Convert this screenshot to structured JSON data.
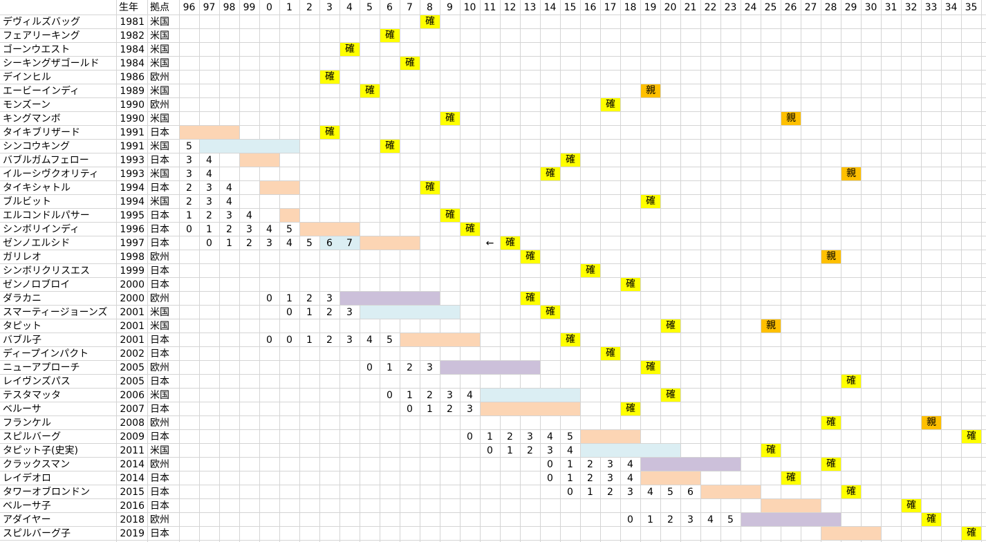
{
  "header": {
    "name_col": "",
    "year_col": "生年",
    "base_col": "拠点",
    "years": [
      "96",
      "97",
      "98",
      "99",
      "0",
      "1",
      "2",
      "3",
      "4",
      "5",
      "6",
      "7",
      "8",
      "9",
      "10",
      "11",
      "12",
      "13",
      "14",
      "15",
      "16",
      "17",
      "18",
      "19",
      "20",
      "21",
      "22",
      "23",
      "24",
      "25",
      "26",
      "27",
      "28",
      "29",
      "30",
      "31",
      "32",
      "33",
      "34",
      "35"
    ]
  },
  "colors": {
    "japan": "#fcd5b4",
    "usa": "#dbeef3",
    "europe": "#ccc0da",
    "kaku": "#ffff00",
    "oya": "#ffc000"
  },
  "rows": [
    {
      "name": "デヴィルズバッグ",
      "year": "1981",
      "base": "米国",
      "bar": null,
      "nums": [],
      "marks": [
        {
          "c": 12,
          "t": "確",
          "k": "kaku"
        }
      ]
    },
    {
      "name": "フェアリーキング",
      "year": "1982",
      "base": "米国",
      "bar": null,
      "nums": [],
      "marks": [
        {
          "c": 10,
          "t": "確",
          "k": "kaku"
        }
      ]
    },
    {
      "name": "ゴーンウエスト",
      "year": "1984",
      "base": "米国",
      "bar": null,
      "nums": [],
      "marks": [
        {
          "c": 8,
          "t": "確",
          "k": "kaku"
        }
      ]
    },
    {
      "name": "シーキングザゴールド",
      "year": "1984",
      "base": "米国",
      "bar": null,
      "nums": [],
      "marks": [
        {
          "c": 11,
          "t": "確",
          "k": "kaku"
        }
      ]
    },
    {
      "name": "デインヒル",
      "year": "1986",
      "base": "欧州",
      "bar": null,
      "nums": [],
      "marks": [
        {
          "c": 7,
          "t": "確",
          "k": "kaku"
        }
      ]
    },
    {
      "name": "エービーインディ",
      "year": "1989",
      "base": "米国",
      "bar": null,
      "nums": [],
      "marks": [
        {
          "c": 9,
          "t": "確",
          "k": "kaku"
        },
        {
          "c": 23,
          "t": "親",
          "k": "oya"
        }
      ]
    },
    {
      "name": "モンズーン",
      "year": "1990",
      "base": "欧州",
      "bar": null,
      "nums": [],
      "marks": [
        {
          "c": 21,
          "t": "確",
          "k": "kaku"
        }
      ]
    },
    {
      "name": "キングマンボ",
      "year": "1990",
      "base": "米国",
      "bar": null,
      "nums": [],
      "marks": [
        {
          "c": 13,
          "t": "確",
          "k": "kaku"
        },
        {
          "c": 30,
          "t": "親",
          "k": "oya"
        }
      ]
    },
    {
      "name": "タイキブリザード",
      "year": "1991",
      "base": "日本",
      "bar": {
        "s": 0,
        "e": 2,
        "k": "japan"
      },
      "nums": [],
      "marks": [
        {
          "c": 7,
          "t": "確",
          "k": "kaku"
        }
      ]
    },
    {
      "name": "シンコウキング",
      "year": "1991",
      "base": "米国",
      "bar": {
        "s": 1,
        "e": 5,
        "k": "usa"
      },
      "nums": [
        {
          "c": 0,
          "t": "5"
        }
      ],
      "marks": [
        {
          "c": 10,
          "t": "確",
          "k": "kaku"
        }
      ]
    },
    {
      "name": "バブルガムフェロー",
      "year": "1993",
      "base": "日本",
      "bar": {
        "s": 3,
        "e": 4,
        "k": "japan"
      },
      "nums": [
        {
          "c": 0,
          "t": "3"
        },
        {
          "c": 1,
          "t": "4"
        }
      ],
      "marks": [
        {
          "c": 19,
          "t": "確",
          "k": "kaku"
        }
      ]
    },
    {
      "name": "イルーシヴクオリティ",
      "year": "1993",
      "base": "米国",
      "bar": null,
      "nums": [
        {
          "c": 0,
          "t": "3"
        },
        {
          "c": 1,
          "t": "4"
        }
      ],
      "marks": [
        {
          "c": 18,
          "t": "確",
          "k": "kaku"
        },
        {
          "c": 33,
          "t": "親",
          "k": "oya"
        }
      ]
    },
    {
      "name": "タイキシャトル",
      "year": "1994",
      "base": "日本",
      "bar": {
        "s": 4,
        "e": 5,
        "k": "japan"
      },
      "nums": [
        {
          "c": 0,
          "t": "2"
        },
        {
          "c": 1,
          "t": "3"
        },
        {
          "c": 2,
          "t": "4"
        }
      ],
      "marks": [
        {
          "c": 12,
          "t": "確",
          "k": "kaku"
        }
      ]
    },
    {
      "name": "ブルビット",
      "year": "1994",
      "base": "米国",
      "bar": null,
      "nums": [
        {
          "c": 0,
          "t": "2"
        },
        {
          "c": 1,
          "t": "3"
        },
        {
          "c": 2,
          "t": "4"
        }
      ],
      "marks": [
        {
          "c": 23,
          "t": "確",
          "k": "kaku"
        }
      ]
    },
    {
      "name": "エルコンドルパサー",
      "year": "1995",
      "base": "日本",
      "bar": {
        "s": 5,
        "e": 5,
        "k": "japan"
      },
      "nums": [
        {
          "c": 0,
          "t": "1"
        },
        {
          "c": 1,
          "t": "2"
        },
        {
          "c": 2,
          "t": "3"
        },
        {
          "c": 3,
          "t": "4"
        }
      ],
      "marks": [
        {
          "c": 13,
          "t": "確",
          "k": "kaku"
        }
      ]
    },
    {
      "name": "シンボリインディ",
      "year": "1996",
      "base": "日本",
      "bar": {
        "s": 6,
        "e": 8,
        "k": "japan"
      },
      "nums": [
        {
          "c": 0,
          "t": "0"
        },
        {
          "c": 1,
          "t": "1"
        },
        {
          "c": 2,
          "t": "2"
        },
        {
          "c": 3,
          "t": "3"
        },
        {
          "c": 4,
          "t": "4"
        },
        {
          "c": 5,
          "t": "5"
        }
      ],
      "marks": [
        {
          "c": 14,
          "t": "確",
          "k": "kaku"
        }
      ]
    },
    {
      "name": "ゼンノエルシド",
      "year": "1997",
      "base": "日本",
      "bar": {
        "s": 9,
        "e": 11,
        "k": "japan"
      },
      "bar2": {
        "s": 7,
        "e": 8,
        "k": "usa"
      },
      "nums": [
        {
          "c": 1,
          "t": "0"
        },
        {
          "c": 2,
          "t": "1"
        },
        {
          "c": 3,
          "t": "2"
        },
        {
          "c": 4,
          "t": "3"
        },
        {
          "c": 5,
          "t": "4"
        },
        {
          "c": 6,
          "t": "5"
        },
        {
          "c": 7,
          "t": "6"
        },
        {
          "c": 8,
          "t": "7"
        },
        {
          "c": 15,
          "t": "←"
        }
      ],
      "marks": [
        {
          "c": 16,
          "t": "確",
          "k": "kaku"
        }
      ]
    },
    {
      "name": "ガリレオ",
      "year": "1998",
      "base": "欧州",
      "bar": null,
      "nums": [],
      "marks": [
        {
          "c": 17,
          "t": "確",
          "k": "kaku"
        },
        {
          "c": 32,
          "t": "親",
          "k": "oya"
        }
      ]
    },
    {
      "name": "シンボリクリスエス",
      "year": "1999",
      "base": "日本",
      "bar": null,
      "nums": [],
      "marks": [
        {
          "c": 20,
          "t": "確",
          "k": "kaku"
        }
      ]
    },
    {
      "name": "ゼンノロブロイ",
      "year": "2000",
      "base": "日本",
      "bar": null,
      "nums": [],
      "marks": [
        {
          "c": 22,
          "t": "確",
          "k": "kaku"
        }
      ]
    },
    {
      "name": "ダラカニ",
      "year": "2000",
      "base": "欧州",
      "bar": {
        "s": 8,
        "e": 12,
        "k": "europe"
      },
      "nums": [
        {
          "c": 4,
          "t": "0"
        },
        {
          "c": 5,
          "t": "1"
        },
        {
          "c": 6,
          "t": "2"
        },
        {
          "c": 7,
          "t": "3"
        }
      ],
      "marks": [
        {
          "c": 17,
          "t": "確",
          "k": "kaku"
        }
      ]
    },
    {
      "name": "スマーティージョーンズ",
      "year": "2001",
      "base": "米国",
      "bar": {
        "s": 9,
        "e": 13,
        "k": "usa"
      },
      "nums": [
        {
          "c": 5,
          "t": "0"
        },
        {
          "c": 6,
          "t": "1"
        },
        {
          "c": 7,
          "t": "2"
        },
        {
          "c": 8,
          "t": "3"
        }
      ],
      "marks": [
        {
          "c": 18,
          "t": "確",
          "k": "kaku"
        }
      ]
    },
    {
      "name": "タピット",
      "year": "2001",
      "base": "米国",
      "bar": null,
      "nums": [],
      "marks": [
        {
          "c": 24,
          "t": "確",
          "k": "kaku"
        },
        {
          "c": 29,
          "t": "親",
          "k": "oya"
        }
      ]
    },
    {
      "name": "バブル子",
      "year": "2001",
      "base": "日本",
      "bar": {
        "s": 11,
        "e": 14,
        "k": "japan"
      },
      "nums": [
        {
          "c": 4,
          "t": "0"
        },
        {
          "c": 5,
          "t": "0"
        },
        {
          "c": 6,
          "t": "1"
        },
        {
          "c": 7,
          "t": "2"
        },
        {
          "c": 8,
          "t": "3"
        },
        {
          "c": 9,
          "t": "4"
        },
        {
          "c": 10,
          "t": "5"
        }
      ],
      "marks": [
        {
          "c": 19,
          "t": "確",
          "k": "kaku"
        }
      ]
    },
    {
      "name": "ディープインパクト",
      "year": "2002",
      "base": "日本",
      "bar": null,
      "nums": [],
      "marks": [
        {
          "c": 21,
          "t": "確",
          "k": "kaku"
        }
      ]
    },
    {
      "name": "ニューアプローチ",
      "year": "2005",
      "base": "欧州",
      "bar": {
        "s": 13,
        "e": 17,
        "k": "europe"
      },
      "nums": [
        {
          "c": 9,
          "t": "0"
        },
        {
          "c": 10,
          "t": "1"
        },
        {
          "c": 11,
          "t": "2"
        },
        {
          "c": 12,
          "t": "3"
        }
      ],
      "marks": [
        {
          "c": 23,
          "t": "確",
          "k": "kaku"
        }
      ]
    },
    {
      "name": "レイヴンズパス",
      "year": "2005",
      "base": "日本",
      "bar": null,
      "nums": [],
      "marks": [
        {
          "c": 33,
          "t": "確",
          "k": "kaku"
        }
      ]
    },
    {
      "name": "テスタマッタ",
      "year": "2006",
      "base": "米国",
      "bar": {
        "s": 15,
        "e": 19,
        "k": "usa"
      },
      "nums": [
        {
          "c": 10,
          "t": "0"
        },
        {
          "c": 11,
          "t": "1"
        },
        {
          "c": 12,
          "t": "2"
        },
        {
          "c": 13,
          "t": "3"
        },
        {
          "c": 14,
          "t": "4"
        }
      ],
      "marks": [
        {
          "c": 24,
          "t": "確",
          "k": "kaku"
        }
      ]
    },
    {
      "name": "ベルーサ",
      "year": "2007",
      "base": "日本",
      "bar": {
        "s": 15,
        "e": 19,
        "k": "japan"
      },
      "nums": [
        {
          "c": 11,
          "t": "0"
        },
        {
          "c": 12,
          "t": "1"
        },
        {
          "c": 13,
          "t": "2"
        },
        {
          "c": 14,
          "t": "3"
        }
      ],
      "marks": [
        {
          "c": 22,
          "t": "確",
          "k": "kaku"
        }
      ]
    },
    {
      "name": "フランケル",
      "year": "2008",
      "base": "欧州",
      "bar": null,
      "nums": [],
      "marks": [
        {
          "c": 32,
          "t": "確",
          "k": "kaku"
        },
        {
          "c": 37,
          "t": "親",
          "k": "oya"
        }
      ]
    },
    {
      "name": "スピルバーグ",
      "year": "2009",
      "base": "日本",
      "bar": {
        "s": 20,
        "e": 22,
        "k": "japan"
      },
      "nums": [
        {
          "c": 14,
          "t": "0"
        },
        {
          "c": 15,
          "t": "1"
        },
        {
          "c": 16,
          "t": "2"
        },
        {
          "c": 17,
          "t": "3"
        },
        {
          "c": 18,
          "t": "4"
        },
        {
          "c": 19,
          "t": "5"
        }
      ],
      "marks": [
        {
          "c": 39,
          "t": "確",
          "k": "kaku"
        }
      ]
    },
    {
      "name": "タピット子(史実)",
      "year": "2011",
      "base": "米国",
      "bar": {
        "s": 20,
        "e": 24,
        "k": "usa"
      },
      "nums": [
        {
          "c": 15,
          "t": "0"
        },
        {
          "c": 16,
          "t": "1"
        },
        {
          "c": 17,
          "t": "2"
        },
        {
          "c": 18,
          "t": "3"
        },
        {
          "c": 19,
          "t": "4"
        }
      ],
      "marks": [
        {
          "c": 29,
          "t": "確",
          "k": "kaku"
        }
      ]
    },
    {
      "name": "クラックスマン",
      "year": "2014",
      "base": "欧州",
      "bar": {
        "s": 23,
        "e": 27,
        "k": "europe"
      },
      "nums": [
        {
          "c": 18,
          "t": "0"
        },
        {
          "c": 19,
          "t": "1"
        },
        {
          "c": 20,
          "t": "2"
        },
        {
          "c": 21,
          "t": "3"
        },
        {
          "c": 22,
          "t": "4"
        }
      ],
      "marks": [
        {
          "c": 32,
          "t": "確",
          "k": "kaku"
        }
      ]
    },
    {
      "name": "レイデオロ",
      "year": "2014",
      "base": "日本",
      "bar": {
        "s": 23,
        "e": 25,
        "k": "japan"
      },
      "nums": [
        {
          "c": 18,
          "t": "0"
        },
        {
          "c": 19,
          "t": "1"
        },
        {
          "c": 20,
          "t": "2"
        },
        {
          "c": 21,
          "t": "3"
        },
        {
          "c": 22,
          "t": "4"
        }
      ],
      "marks": [
        {
          "c": 30,
          "t": "確",
          "k": "kaku"
        }
      ]
    },
    {
      "name": "タワーオブロンドン",
      "year": "2015",
      "base": "日本",
      "bar": {
        "s": 26,
        "e": 28,
        "k": "japan"
      },
      "nums": [
        {
          "c": 19,
          "t": "0"
        },
        {
          "c": 20,
          "t": "1"
        },
        {
          "c": 21,
          "t": "2"
        },
        {
          "c": 22,
          "t": "3"
        },
        {
          "c": 23,
          "t": "4"
        },
        {
          "c": 24,
          "t": "5"
        },
        {
          "c": 25,
          "t": "6"
        }
      ],
      "marks": [
        {
          "c": 33,
          "t": "確",
          "k": "kaku"
        }
      ]
    },
    {
      "name": "ベルーサ子",
      "year": "2016",
      "base": "日本",
      "bar": {
        "s": 29,
        "e": 31,
        "k": "japan"
      },
      "nums": [],
      "marks": [
        {
          "c": 36,
          "t": "確",
          "k": "kaku"
        }
      ]
    },
    {
      "name": "アダイヤー",
      "year": "2018",
      "base": "欧州",
      "bar": {
        "s": 28,
        "e": 32,
        "k": "europe"
      },
      "nums": [
        {
          "c": 22,
          "t": "0"
        },
        {
          "c": 23,
          "t": "1"
        },
        {
          "c": 24,
          "t": "2"
        },
        {
          "c": 25,
          "t": "3"
        },
        {
          "c": 26,
          "t": "4"
        },
        {
          "c": 27,
          "t": "5"
        }
      ],
      "marks": [
        {
          "c": 37,
          "t": "確",
          "k": "kaku"
        }
      ]
    },
    {
      "name": "スピルバーグ子",
      "year": "2019",
      "base": "日本",
      "bar": {
        "s": 32,
        "e": 34,
        "k": "japan"
      },
      "nums": [],
      "marks": [
        {
          "c": 39,
          "t": "確",
          "k": "kaku"
        }
      ]
    }
  ]
}
